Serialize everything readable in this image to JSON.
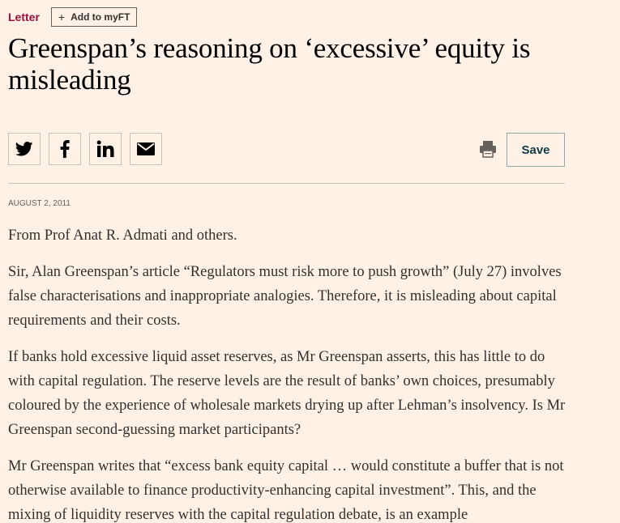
{
  "header": {
    "tag": "Letter",
    "myft_icon": "plus-icon",
    "myft_label": "Add to myFT"
  },
  "article": {
    "headline": "Greenspan’s reasoning on ‘excessive’ equity is misleading",
    "date": "AUGUST 2, 2011",
    "paragraphs": [
      "From Prof Anat R. Admati and others.",
      "Sir, Alan Greenspan’s article “Regulators must risk more to push growth” (July 27) involves false characterisations and inappropriate analogies. Therefore, it is misleading about capital requirements and their costs.",
      "If banks hold excessive liquid asset reserves, as Mr Greenspan asserts, this has little to do with capital regulation. The reserve levels are the result of banks’ own choices, presumably coloured by the experience of wholesale markets drying up after Lehman’s insolvency. Is Mr Greenspan second-guessing market participants?",
      "Mr Greenspan writes that “excess bank equity capital … would constitute a buffer that is not otherwise available to finance productivity-enhancing capital investment”. This, and the mixing of liquidity reserves with the capital regulation debate, is an example"
    ]
  },
  "toolbar": {
    "share_icons": [
      "twitter-icon",
      "facebook-icon",
      "linkedin-icon",
      "email-icon"
    ],
    "print_icon": "print-icon",
    "save_label": "Save"
  },
  "colors": {
    "background": "#fff1e5",
    "tag": "#990f3d",
    "text": "#33302e",
    "save_text": "#0d3c45",
    "save_border": "#8fa9a5"
  }
}
